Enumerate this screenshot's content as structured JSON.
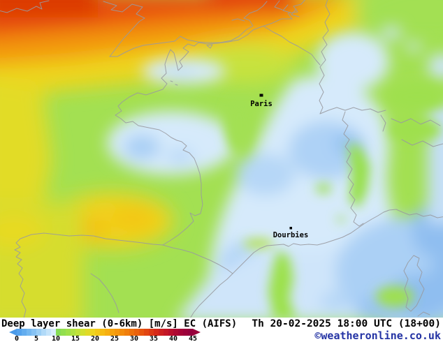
{
  "map": {
    "cities": [
      {
        "name": "Paris"
      },
      {
        "name": "Dourbies"
      }
    ],
    "palette": {
      "base_green": "#a3e052",
      "light_blue": "#d6eafb",
      "medium_blue": "#aed2f6",
      "deep_blue": "#8fbef0",
      "yellow": "#f0d51e",
      "orange": "#f3970d",
      "red_orange": "#e9500b",
      "dark_red": "#dc3a06",
      "coastline_gray": "#999aa0"
    }
  },
  "legend": {
    "title": "Deep layer shear (0-6km) [m/s] EC (AIFS)",
    "datetime": "Th 20-02-2025 18:00 UTC (18+00)",
    "copyright": "©weatheronline.co.uk",
    "copyright_color": "#2433a4",
    "unit_ticks": [
      "0",
      "5",
      "10",
      "15",
      "20",
      "25",
      "30",
      "35",
      "40",
      "45"
    ],
    "tick_min": 0,
    "tick_max": 45,
    "colorbar_colors": [
      "#54a2ed",
      "#63adef",
      "#74b8f1",
      "#86c2f3",
      "#9bcef5",
      "#b1daf8",
      "#c6e4fa",
      "#d8edfc",
      "#86dc55",
      "#92df4f",
      "#a0e149",
      "#b0e241",
      "#c1e238",
      "#d2e030",
      "#e1da27",
      "#eed520",
      "#f3c918",
      "#f6bc13",
      "#f7af10",
      "#f6a30e",
      "#f5970d",
      "#f28b0c",
      "#f07e0c",
      "#ed700c",
      "#ea620d",
      "#e7550f",
      "#e24612",
      "#dc3815",
      "#d62a19",
      "#cc2020",
      "#c31726",
      "#b90e2c",
      "#ae0832",
      "#a50336",
      "#9c013a",
      "#94003d"
    ],
    "left_arrow_color": "#4a9ae9",
    "right_arrow_color": "#99023b"
  }
}
